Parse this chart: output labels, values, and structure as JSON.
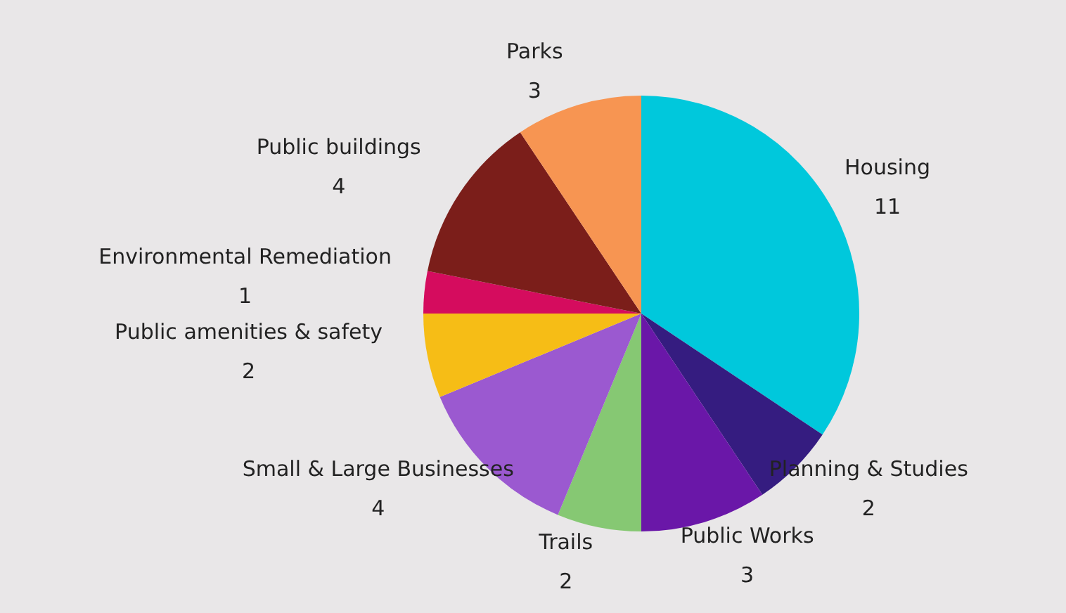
{
  "chart_data": {
    "type": "pie",
    "categories": [
      "Housing",
      "Planning & Studies",
      "Public Works",
      "Trails",
      "Small & Large Businesses",
      "Public amenities & safety",
      "Environmental Remediation",
      "Public buildings",
      "Parks"
    ],
    "values": [
      11,
      2,
      3,
      2,
      4,
      2,
      1,
      4,
      3
    ],
    "colors": [
      "#00c8dc",
      "#351c80",
      "#6a17a8",
      "#86c873",
      "#9b59d0",
      "#f6bd16",
      "#d50c5e",
      "#7b1e1a",
      "#f79552"
    ],
    "data_labels": true,
    "legend": false
  }
}
